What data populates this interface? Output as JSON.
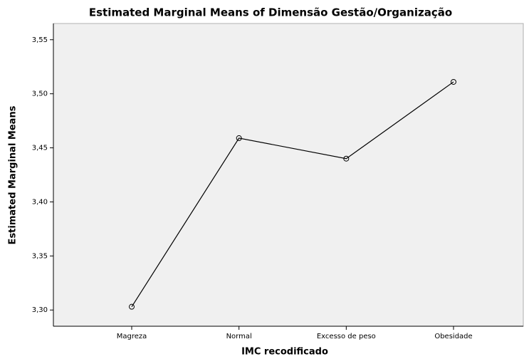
{
  "chart_data": {
    "type": "line",
    "title": "Estimated Marginal Means of Dimensão Gestão/Organização",
    "x_label": "IMC recodificado",
    "y_label": "Estimated Marginal Means",
    "categories": [
      "Magreza",
      "Normal",
      "Excesso de peso",
      "Obesidade"
    ],
    "series": [
      {
        "name": "Estimated Marginal Means",
        "color": "#000000",
        "values": [
          3.303,
          3.459,
          3.44,
          3.511
        ]
      }
    ],
    "ylim": [
      3.285,
      3.565
    ],
    "yticks": [
      {
        "value": 3.3,
        "label": "3,30"
      },
      {
        "value": 3.35,
        "label": "3,35"
      },
      {
        "value": 3.4,
        "label": "3,40"
      },
      {
        "value": 3.45,
        "label": "3,45"
      },
      {
        "value": 3.5,
        "label": "3,50"
      },
      {
        "value": 3.55,
        "label": "3,55"
      }
    ],
    "grid": false
  }
}
